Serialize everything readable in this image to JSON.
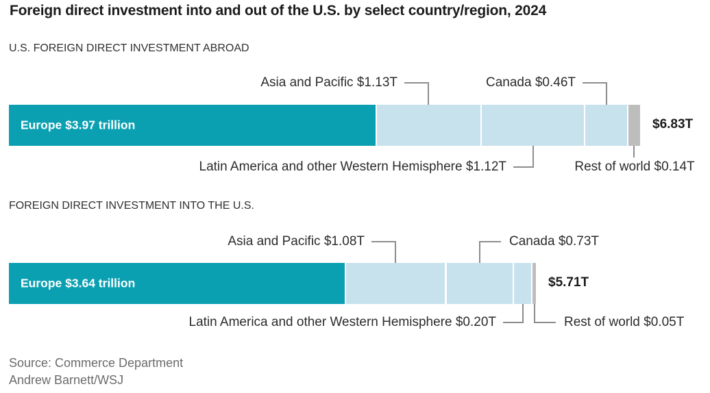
{
  "title": "Foreign direct investment into and out of the U.S. by select country/region, 2024",
  "source": {
    "line1": "Source: Commerce Department",
    "line2": "Andrew Barnett/WSJ"
  },
  "colors": {
    "teal": "#0aa0b2",
    "light_blue": "#c7e2ed",
    "gray": "#bdbdbd",
    "leader": "#8c8c8c"
  },
  "chart_data": [
    {
      "type": "bar",
      "orientation": "horizontal-stacked",
      "unit": "trillion USD",
      "section_label": "U.S. FOREIGN DIRECT INVESTMENT ABROAD",
      "total_value": 6.83,
      "total_label": "$6.83T",
      "segments": [
        {
          "name": "Europe",
          "value": 3.97,
          "label": "Europe $3.97 trillion",
          "color": "teal",
          "label_position": "inside",
          "text_side": "left"
        },
        {
          "name": "Asia and Pacific",
          "value": 1.13,
          "label": "Asia and Pacific $1.13T",
          "color": "light_blue",
          "label_position": "above",
          "text_side": "left"
        },
        {
          "name": "Latin America and other Western Hemisphere",
          "value": 1.12,
          "label": "Latin America and other Western Hemisphere $1.12T",
          "color": "light_blue",
          "label_position": "below",
          "text_side": "left"
        },
        {
          "name": "Canada",
          "value": 0.46,
          "label": "Canada $0.46T",
          "color": "light_blue",
          "label_position": "above",
          "text_side": "left"
        },
        {
          "name": "Rest of world",
          "value": 0.14,
          "label": "Rest of world $0.14T",
          "color": "gray",
          "label_position": "below",
          "text_side": "center"
        }
      ]
    },
    {
      "type": "bar",
      "orientation": "horizontal-stacked",
      "unit": "trillion USD",
      "section_label": "FOREIGN DIRECT INVESTMENT INTO THE U.S.",
      "total_value": 5.71,
      "total_label": "$5.71T",
      "segments": [
        {
          "name": "Europe",
          "value": 3.64,
          "label": "Europe $3.64 trillion",
          "color": "teal",
          "label_position": "inside",
          "text_side": "left"
        },
        {
          "name": "Asia and Pacific",
          "value": 1.08,
          "label": "Asia and Pacific $1.08T",
          "color": "light_blue",
          "label_position": "above",
          "text_side": "left"
        },
        {
          "name": "Canada",
          "value": 0.73,
          "label": "Canada $0.73T",
          "color": "light_blue",
          "label_position": "above",
          "text_side": "right"
        },
        {
          "name": "Latin America and other Western Hemisphere",
          "value": 0.2,
          "label": "Latin America and other Western Hemisphere $0.20T",
          "color": "light_blue",
          "label_position": "below",
          "text_side": "left"
        },
        {
          "name": "Rest of world",
          "value": 0.05,
          "label": "Rest of world $0.05T",
          "color": "gray",
          "label_position": "below",
          "text_side": "right"
        }
      ]
    }
  ]
}
